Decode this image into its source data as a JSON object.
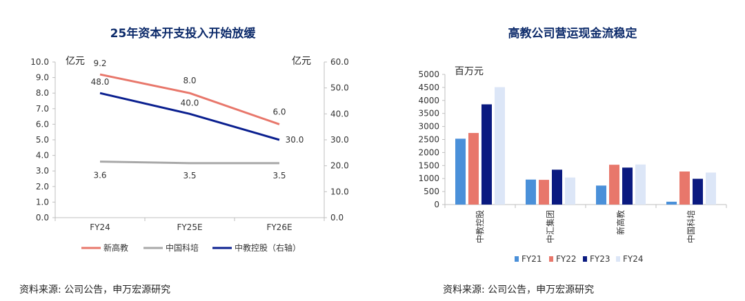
{
  "chart_data": [
    {
      "type": "line",
      "title": "25年资本开支投入开始放缓",
      "categories": [
        "FY24",
        "FY25E",
        "FY26E"
      ],
      "left_axis": {
        "unit": "亿元",
        "ylim": [
          0,
          10
        ],
        "ticks": [
          "0.0",
          "1.0",
          "2.0",
          "3.0",
          "4.0",
          "5.0",
          "6.0",
          "7.0",
          "8.0",
          "9.0",
          "10.0"
        ]
      },
      "right_axis": {
        "unit": "亿元",
        "ylim": [
          0,
          60
        ],
        "ticks": [
          "0.0",
          "10.0",
          "20.0",
          "30.0",
          "40.0",
          "50.0",
          "60.0"
        ]
      },
      "series": [
        {
          "name": "新高教",
          "axis": "left",
          "color": "#e8776b",
          "values": [
            9.2,
            8.0,
            6.0
          ],
          "labels": [
            "9.2",
            "8.0",
            "6.0"
          ]
        },
        {
          "name": "中国科培",
          "axis": "left",
          "color": "#a8a8a8",
          "values": [
            3.6,
            3.5,
            3.5
          ],
          "labels": [
            "3.6",
            "3.5",
            "3.5"
          ]
        },
        {
          "name": "中教控股（右轴）",
          "axis": "right",
          "color": "#0a1f8f",
          "values": [
            48.0,
            40.0,
            30.0
          ],
          "labels": [
            "48.0",
            "40.0",
            "30.0"
          ]
        }
      ],
      "source": "资料来源: 公司公告，申万宏源研究"
    },
    {
      "type": "bar",
      "title": "高教公司营运现金流稳定",
      "unit": "百万元",
      "categories": [
        "中教控股",
        "中汇集团",
        "新高教",
        "中国科培"
      ],
      "ylim": [
        0,
        5000
      ],
      "ticks": [
        "0",
        "500",
        "1000",
        "1500",
        "2000",
        "2500",
        "3000",
        "3500",
        "4000",
        "4500",
        "5000"
      ],
      "series": [
        {
          "name": "FY21",
          "color": "#4a90d9",
          "values": [
            2530,
            960,
            730,
            110
          ]
        },
        {
          "name": "FY22",
          "color": "#e8776b",
          "values": [
            2750,
            950,
            1530,
            1270
          ]
        },
        {
          "name": "FY23",
          "color": "#0a1a80",
          "values": [
            3850,
            1340,
            1420,
            990
          ]
        },
        {
          "name": "FY24",
          "color": "#dce6f7",
          "values": [
            4510,
            1040,
            1540,
            1230
          ]
        }
      ],
      "source": "资料来源: 公司公告，申万宏源研究"
    }
  ]
}
